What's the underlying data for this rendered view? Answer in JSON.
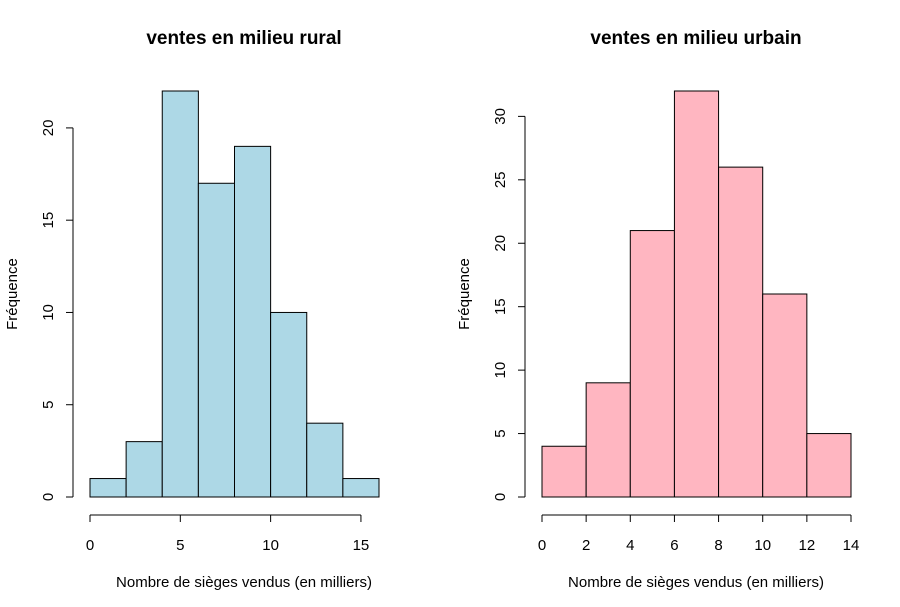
{
  "chart_data": [
    {
      "type": "bar",
      "subtype": "histogram",
      "title": "ventes en milieu rural",
      "xlabel": "Nombre de sièges vendus (en milliers)",
      "ylabel": "Fréquence",
      "bins": [
        [
          0,
          2
        ],
        [
          2,
          4
        ],
        [
          4,
          6
        ],
        [
          6,
          8
        ],
        [
          8,
          10
        ],
        [
          10,
          12
        ],
        [
          12,
          14
        ],
        [
          14,
          16
        ]
      ],
      "values": [
        1,
        3,
        22,
        17,
        19,
        10,
        4,
        1
      ],
      "xlim": [
        0,
        16
      ],
      "ylim": [
        0,
        22
      ],
      "xticks": [
        0,
        5,
        10,
        15
      ],
      "yticks": [
        0,
        5,
        10,
        15,
        20
      ],
      "color": "#ADD8E6",
      "grid": false
    },
    {
      "type": "bar",
      "subtype": "histogram",
      "title": "ventes en milieu urbain",
      "xlabel": "Nombre de sièges vendus (en milliers)",
      "ylabel": "Fréquence",
      "bins": [
        [
          0,
          2
        ],
        [
          2,
          4
        ],
        [
          4,
          6
        ],
        [
          6,
          8
        ],
        [
          8,
          10
        ],
        [
          10,
          12
        ],
        [
          12,
          14
        ]
      ],
      "values": [
        4,
        9,
        21,
        32,
        26,
        16,
        5
      ],
      "xlim": [
        0,
        14
      ],
      "ylim": [
        0,
        32
      ],
      "xticks": [
        0,
        2,
        4,
        6,
        8,
        10,
        12,
        14
      ],
      "yticks": [
        0,
        5,
        10,
        15,
        20,
        25,
        30
      ],
      "color": "#FFB6C1",
      "grid": false
    }
  ]
}
